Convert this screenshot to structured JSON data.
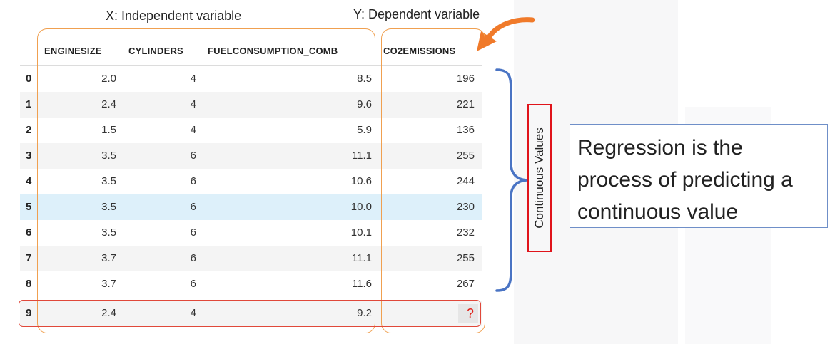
{
  "labels": {
    "x_label": "X: Independent variable",
    "y_label": "Y: Dependent variable",
    "continuous_values": "Continuous Values"
  },
  "table": {
    "headers": [
      "ENGINESIZE",
      "CYLINDERS",
      "FUELCONSUMPTION_COMB",
      "CO2EMISSIONS"
    ],
    "rows": [
      [
        "0",
        "2.0",
        "4",
        "8.5",
        "196"
      ],
      [
        "1",
        "2.4",
        "4",
        "9.6",
        "221"
      ],
      [
        "2",
        "1.5",
        "4",
        "5.9",
        "136"
      ],
      [
        "3",
        "3.5",
        "6",
        "11.1",
        "255"
      ],
      [
        "4",
        "3.5",
        "6",
        "10.6",
        "244"
      ],
      [
        "5",
        "3.5",
        "6",
        "10.0",
        "230"
      ],
      [
        "6",
        "3.5",
        "6",
        "10.1",
        "232"
      ],
      [
        "7",
        "3.7",
        "6",
        "11.1",
        "255"
      ],
      [
        "8",
        "3.7",
        "6",
        "11.6",
        "267"
      ],
      [
        "9",
        "2.4",
        "4",
        "9.2",
        "?"
      ]
    ],
    "highlighted_row": "5",
    "predicted_row": "9"
  },
  "callout": {
    "text": "Regression is the process of predicting a continuous value"
  },
  "colors": {
    "variable_box": "#f0a050",
    "arrow": "#f07a2a",
    "brace": "#4a74c4",
    "red_outline": "#e0141b",
    "callout_border": "#6f8fc8",
    "highlight_row": "#ddf0fa"
  }
}
